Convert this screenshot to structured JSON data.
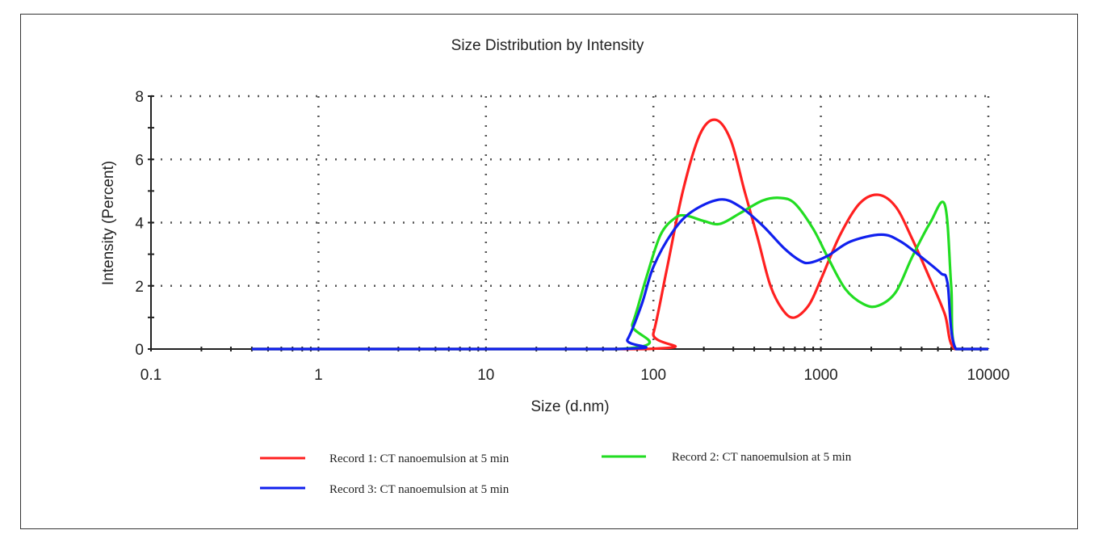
{
  "chart_data": {
    "type": "line",
    "title": "Size Distribution by Intensity",
    "xlabel": "Size (d.nm)",
    "ylabel": "Intensity (Percent)",
    "xscale": "log",
    "xlim": [
      0.1,
      10000
    ],
    "ylim": [
      0,
      8
    ],
    "xticks": [
      "0.1",
      "1",
      "10",
      "100",
      "1000",
      "10000"
    ],
    "yticks": [
      "0",
      "2",
      "4",
      "6",
      "8"
    ],
    "grid": true,
    "legend_placement": "bottom",
    "series": [
      {
        "name": "Record 1: CT nanoemulsion at 5 min",
        "color": "#ff2020",
        "points": [
          [
            0.4,
            0
          ],
          [
            88,
            0
          ],
          [
            100,
            0.5
          ],
          [
            120,
            2.5
          ],
          [
            150,
            5
          ],
          [
            190,
            6.8
          ],
          [
            236,
            7.25
          ],
          [
            290,
            6.6
          ],
          [
            350,
            5
          ],
          [
            420,
            3.5
          ],
          [
            500,
            2
          ],
          [
            600,
            1.2
          ],
          [
            700,
            1
          ],
          [
            850,
            1.4
          ],
          [
            1000,
            2.2
          ],
          [
            1300,
            3.6
          ],
          [
            1700,
            4.6
          ],
          [
            2200,
            4.88
          ],
          [
            2800,
            4.5
          ],
          [
            3500,
            3.5
          ],
          [
            4500,
            2.2
          ],
          [
            5500,
            1.1
          ],
          [
            6300,
            0
          ],
          [
            10000,
            0
          ]
        ]
      },
      {
        "name": "Record 2: CT nanoemulsion at 5 min",
        "color": "#22dd22",
        "points": [
          [
            0.4,
            0
          ],
          [
            62,
            0
          ],
          [
            75,
            0.8
          ],
          [
            90,
            2.2
          ],
          [
            110,
            3.6
          ],
          [
            135,
            4.15
          ],
          [
            157,
            4.22
          ],
          [
            200,
            4.05
          ],
          [
            250,
            3.96
          ],
          [
            330,
            4.3
          ],
          [
            450,
            4.7
          ],
          [
            575,
            4.78
          ],
          [
            700,
            4.6
          ],
          [
            900,
            3.8
          ],
          [
            1100,
            2.9
          ],
          [
            1400,
            1.9
          ],
          [
            1800,
            1.42
          ],
          [
            2200,
            1.37
          ],
          [
            2800,
            1.8
          ],
          [
            3500,
            2.9
          ],
          [
            4500,
            4.0
          ],
          [
            5500,
            4.56
          ],
          [
            6000,
            2
          ],
          [
            6400,
            0
          ],
          [
            10000,
            0
          ]
        ]
      },
      {
        "name": "Record 3: CT nanoemulsion at 5 min",
        "color": "#1020ee",
        "points": [
          [
            0.4,
            0
          ],
          [
            60,
            0
          ],
          [
            70,
            0.3
          ],
          [
            85,
            1.4
          ],
          [
            100,
            2.6
          ],
          [
            130,
            3.7
          ],
          [
            170,
            4.35
          ],
          [
            250,
            4.73
          ],
          [
            330,
            4.5
          ],
          [
            450,
            3.9
          ],
          [
            600,
            3.2
          ],
          [
            750,
            2.8
          ],
          [
            860,
            2.73
          ],
          [
            1100,
            2.95
          ],
          [
            1500,
            3.4
          ],
          [
            2300,
            3.62
          ],
          [
            3000,
            3.4
          ],
          [
            4000,
            2.9
          ],
          [
            5200,
            2.4
          ],
          [
            5700,
            2.1
          ],
          [
            6400,
            0
          ],
          [
            10000,
            0
          ]
        ]
      }
    ]
  }
}
